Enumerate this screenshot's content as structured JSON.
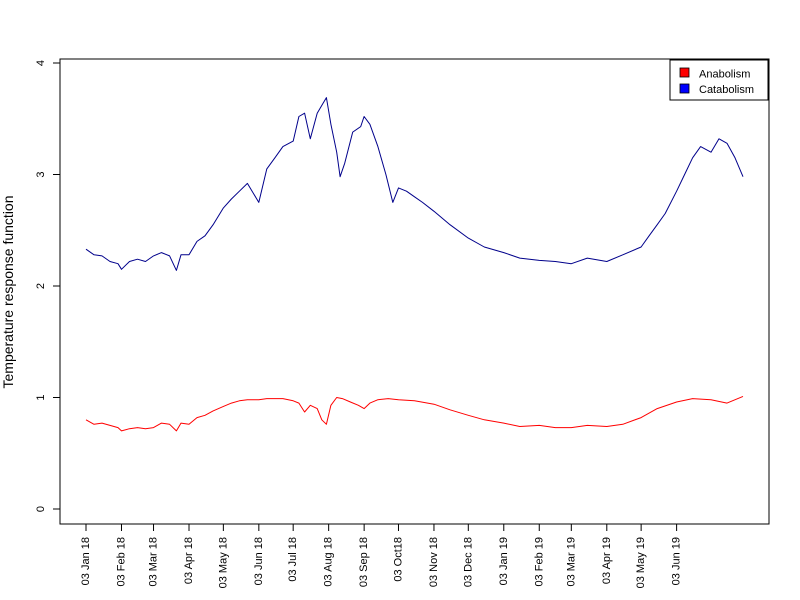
{
  "chart_data": {
    "type": "line",
    "ylabel": "Temperature response function",
    "xlabel": "",
    "ylim": [
      0,
      4
    ],
    "yticks": [
      0,
      1,
      2,
      3,
      4
    ],
    "xlim": [
      "2018-01-03",
      "2019-07-31"
    ],
    "xticks": [
      {
        "date": "2018-01-03",
        "label": "03 Jan 18"
      },
      {
        "date": "2018-02-03",
        "label": "03 Feb 18"
      },
      {
        "date": "2018-03-03",
        "label": "03 Mar 18"
      },
      {
        "date": "2018-04-03",
        "label": "03 Apr 18"
      },
      {
        "date": "2018-05-03",
        "label": "03 May 18"
      },
      {
        "date": "2018-06-03",
        "label": "03 Jun 18"
      },
      {
        "date": "2018-07-03",
        "label": "03 Jul 18"
      },
      {
        "date": "2018-08-03",
        "label": "03 Aug 18"
      },
      {
        "date": "2018-09-03",
        "label": "03 Sep 18"
      },
      {
        "date": "2018-10-03",
        "label": "03 Oct18"
      },
      {
        "date": "2018-11-03",
        "label": "03 Nov 18"
      },
      {
        "date": "2018-12-03",
        "label": "03 Dec 18"
      },
      {
        "date": "2019-01-03",
        "label": "03 Jan 19"
      },
      {
        "date": "2019-02-03",
        "label": "03 Feb 19"
      },
      {
        "date": "2019-03-03",
        "label": "03 Mar 19"
      },
      {
        "date": "2019-04-03",
        "label": "03 Apr 19"
      },
      {
        "date": "2019-05-03",
        "label": "03 May 19"
      },
      {
        "date": "2019-06-03",
        "label": "03 Jun 19"
      }
    ],
    "legend": {
      "position": "top-right"
    },
    "grid": false,
    "series": [
      {
        "name": "Anabolism",
        "color": "#ff0000",
        "legend_fill": "#ff0000",
        "points": [
          [
            "2018-01-03",
            0.8
          ],
          [
            "2018-01-10",
            0.76
          ],
          [
            "2018-01-17",
            0.77
          ],
          [
            "2018-01-24",
            0.75
          ],
          [
            "2018-01-31",
            0.73
          ],
          [
            "2018-02-03",
            0.7
          ],
          [
            "2018-02-10",
            0.72
          ],
          [
            "2018-02-17",
            0.73
          ],
          [
            "2018-02-24",
            0.72
          ],
          [
            "2018-03-03",
            0.73
          ],
          [
            "2018-03-10",
            0.77
          ],
          [
            "2018-03-17",
            0.76
          ],
          [
            "2018-03-23",
            0.7
          ],
          [
            "2018-03-27",
            0.77
          ],
          [
            "2018-04-03",
            0.76
          ],
          [
            "2018-04-10",
            0.82
          ],
          [
            "2018-04-17",
            0.84
          ],
          [
            "2018-04-24",
            0.88
          ],
          [
            "2018-05-03",
            0.92
          ],
          [
            "2018-05-10",
            0.95
          ],
          [
            "2018-05-17",
            0.97
          ],
          [
            "2018-05-24",
            0.98
          ],
          [
            "2018-06-03",
            0.98
          ],
          [
            "2018-06-10",
            0.99
          ],
          [
            "2018-06-17",
            0.99
          ],
          [
            "2018-06-24",
            0.99
          ],
          [
            "2018-07-03",
            0.97
          ],
          [
            "2018-07-08",
            0.95
          ],
          [
            "2018-07-13",
            0.87
          ],
          [
            "2018-07-18",
            0.93
          ],
          [
            "2018-07-24",
            0.9
          ],
          [
            "2018-07-28",
            0.8
          ],
          [
            "2018-08-01",
            0.76
          ],
          [
            "2018-08-05",
            0.93
          ],
          [
            "2018-08-10",
            1.0
          ],
          [
            "2018-08-15",
            0.99
          ],
          [
            "2018-08-22",
            0.96
          ],
          [
            "2018-08-29",
            0.93
          ],
          [
            "2018-09-03",
            0.9
          ],
          [
            "2018-09-08",
            0.95
          ],
          [
            "2018-09-15",
            0.98
          ],
          [
            "2018-09-24",
            0.99
          ],
          [
            "2018-10-03",
            0.98
          ],
          [
            "2018-10-17",
            0.97
          ],
          [
            "2018-11-03",
            0.94
          ],
          [
            "2018-11-17",
            0.89
          ],
          [
            "2018-12-03",
            0.84
          ],
          [
            "2018-12-17",
            0.8
          ],
          [
            "2019-01-03",
            0.77
          ],
          [
            "2019-01-17",
            0.74
          ],
          [
            "2019-02-03",
            0.75
          ],
          [
            "2019-02-17",
            0.73
          ],
          [
            "2019-03-03",
            0.73
          ],
          [
            "2019-03-17",
            0.75
          ],
          [
            "2019-04-03",
            0.74
          ],
          [
            "2019-04-17",
            0.76
          ],
          [
            "2019-05-03",
            0.82
          ],
          [
            "2019-05-17",
            0.9
          ],
          [
            "2019-06-03",
            0.96
          ],
          [
            "2019-06-17",
            0.99
          ],
          [
            "2019-07-03",
            0.98
          ],
          [
            "2019-07-17",
            0.95
          ],
          [
            "2019-07-31",
            1.01
          ]
        ]
      },
      {
        "name": "Catabolism",
        "color": "#00008b",
        "legend_fill": "#0000ff",
        "points": [
          [
            "2018-01-03",
            2.33
          ],
          [
            "2018-01-10",
            2.28
          ],
          [
            "2018-01-17",
            2.27
          ],
          [
            "2018-01-24",
            2.22
          ],
          [
            "2018-01-31",
            2.2
          ],
          [
            "2018-02-03",
            2.15
          ],
          [
            "2018-02-10",
            2.22
          ],
          [
            "2018-02-17",
            2.24
          ],
          [
            "2018-02-24",
            2.22
          ],
          [
            "2018-03-03",
            2.27
          ],
          [
            "2018-03-10",
            2.3
          ],
          [
            "2018-03-17",
            2.27
          ],
          [
            "2018-03-23",
            2.14
          ],
          [
            "2018-03-27",
            2.28
          ],
          [
            "2018-04-03",
            2.28
          ],
          [
            "2018-04-10",
            2.4
          ],
          [
            "2018-04-17",
            2.45
          ],
          [
            "2018-04-24",
            2.55
          ],
          [
            "2018-05-03",
            2.7
          ],
          [
            "2018-05-10",
            2.78
          ],
          [
            "2018-05-17",
            2.85
          ],
          [
            "2018-05-24",
            2.92
          ],
          [
            "2018-06-03",
            2.75
          ],
          [
            "2018-06-10",
            3.05
          ],
          [
            "2018-06-17",
            3.15
          ],
          [
            "2018-06-24",
            3.25
          ],
          [
            "2018-07-03",
            3.3
          ],
          [
            "2018-07-08",
            3.52
          ],
          [
            "2018-07-13",
            3.55
          ],
          [
            "2018-07-18",
            3.32
          ],
          [
            "2018-07-24",
            3.55
          ],
          [
            "2018-07-28",
            3.62
          ],
          [
            "2018-08-01",
            3.69
          ],
          [
            "2018-08-05",
            3.45
          ],
          [
            "2018-08-10",
            3.2
          ],
          [
            "2018-08-13",
            2.98
          ],
          [
            "2018-08-17",
            3.1
          ],
          [
            "2018-08-24",
            3.38
          ],
          [
            "2018-08-31",
            3.43
          ],
          [
            "2018-09-03",
            3.52
          ],
          [
            "2018-09-08",
            3.45
          ],
          [
            "2018-09-15",
            3.25
          ],
          [
            "2018-09-22",
            3.0
          ],
          [
            "2018-09-28",
            2.75
          ],
          [
            "2018-10-03",
            2.88
          ],
          [
            "2018-10-10",
            2.85
          ],
          [
            "2018-10-17",
            2.8
          ],
          [
            "2018-10-24",
            2.75
          ],
          [
            "2018-11-03",
            2.67
          ],
          [
            "2018-11-17",
            2.55
          ],
          [
            "2018-12-03",
            2.43
          ],
          [
            "2018-12-17",
            2.35
          ],
          [
            "2019-01-03",
            2.3
          ],
          [
            "2019-01-17",
            2.25
          ],
          [
            "2019-02-03",
            2.23
          ],
          [
            "2019-02-17",
            2.22
          ],
          [
            "2019-03-03",
            2.2
          ],
          [
            "2019-03-17",
            2.25
          ],
          [
            "2019-04-03",
            2.22
          ],
          [
            "2019-04-17",
            2.28
          ],
          [
            "2019-05-03",
            2.35
          ],
          [
            "2019-05-10",
            2.45
          ],
          [
            "2019-05-17",
            2.55
          ],
          [
            "2019-05-24",
            2.65
          ],
          [
            "2019-06-03",
            2.85
          ],
          [
            "2019-06-10",
            3.0
          ],
          [
            "2019-06-17",
            3.15
          ],
          [
            "2019-06-24",
            3.25
          ],
          [
            "2019-07-03",
            3.2
          ],
          [
            "2019-07-10",
            3.32
          ],
          [
            "2019-07-17",
            3.28
          ],
          [
            "2019-07-24",
            3.15
          ],
          [
            "2019-07-31",
            2.98
          ]
        ]
      }
    ]
  }
}
